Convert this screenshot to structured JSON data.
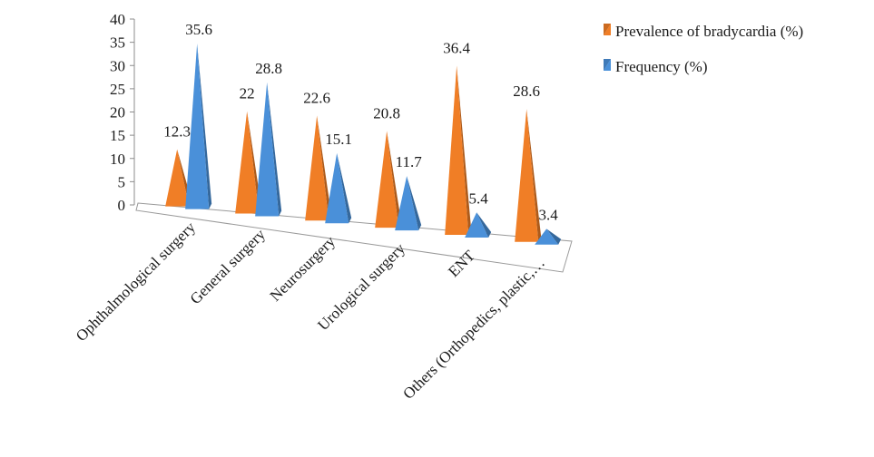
{
  "chart_data": {
    "type": "bar",
    "subtype": "3d-pyramid",
    "categories": [
      "Ophthalmological surgery",
      "General surgery",
      "Neurosurgery",
      "Urological surgery",
      "ENT",
      "Others (Orthopedics, plastic,…"
    ],
    "series": [
      {
        "name": "Prevalence of bradycardia (%)",
        "values": [
          12.3,
          22,
          22.6,
          20.8,
          36.4,
          28.6
        ],
        "color": "#f07e26"
      },
      {
        "name": "Frequency (%)",
        "values": [
          35.6,
          28.8,
          15.1,
          11.7,
          5.4,
          3.4
        ],
        "color": "#4a90d9"
      }
    ],
    "ylim": [
      0,
      40
    ],
    "yticks": [
      0,
      5,
      10,
      15,
      20,
      25,
      30,
      35,
      40
    ],
    "data_labels": true,
    "legend_position": "top-right",
    "grid": false
  }
}
